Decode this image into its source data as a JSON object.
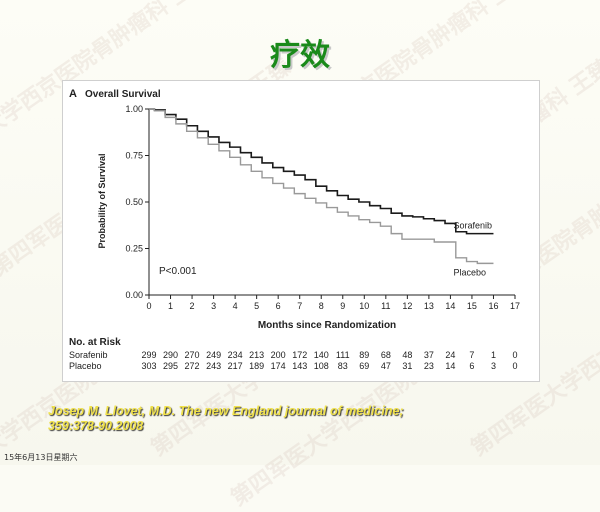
{
  "slide": {
    "title": "疗效",
    "citation_line1": "Josep M. Llovet, M.D.  The  new England journal  of  medicine;",
    "citation_line2": "359:378-90.2008",
    "footer": "15年6月13日星期六",
    "watermark_text": "第四军医大学西京医院骨肿瘤科  王臻"
  },
  "chart_data": {
    "type": "line",
    "panel_label": "A",
    "title": "Overall Survival",
    "xlabel": "Months since Randomization",
    "ylabel": "Probability of Survival",
    "xlim": [
      0,
      17
    ],
    "ylim": [
      0,
      1.0
    ],
    "x_ticks": [
      0,
      1,
      2,
      3,
      4,
      5,
      6,
      7,
      8,
      9,
      10,
      11,
      12,
      13,
      14,
      15,
      16,
      17
    ],
    "y_ticks": [
      {
        "value": 0,
        "label": "0.00"
      },
      {
        "value": 0.25,
        "label": "0.25"
      },
      {
        "value": 0.5,
        "label": "0.50"
      },
      {
        "value": 0.75,
        "label": "0.75"
      },
      {
        "value": 1.0,
        "label": "1.00"
      }
    ],
    "annotation": "P<0.001",
    "series": [
      {
        "name": "Sorafenib",
        "color": "#1a1a1a",
        "x": [
          0,
          0.5,
          1,
          1.5,
          2,
          2.5,
          3,
          3.5,
          4,
          4.5,
          5,
          5.5,
          6,
          6.5,
          7,
          7.5,
          8,
          8.5,
          9,
          9.5,
          10,
          10.5,
          11,
          11.5,
          12,
          12.5,
          13,
          13.5,
          14,
          14.5,
          15,
          15.5,
          16
        ],
        "y": [
          1.0,
          0.995,
          0.97,
          0.945,
          0.91,
          0.88,
          0.85,
          0.82,
          0.795,
          0.765,
          0.74,
          0.71,
          0.685,
          0.665,
          0.645,
          0.62,
          0.585,
          0.56,
          0.535,
          0.515,
          0.5,
          0.48,
          0.465,
          0.44,
          0.425,
          0.42,
          0.41,
          0.4,
          0.385,
          0.34,
          0.33,
          0.33,
          0.33
        ]
      },
      {
        "name": "Placebo",
        "color": "#999999",
        "x": [
          0,
          0.5,
          1,
          1.5,
          2,
          2.5,
          3,
          3.5,
          4,
          4.5,
          5,
          5.5,
          6,
          6.5,
          7,
          7.5,
          8,
          8.5,
          9,
          9.5,
          10,
          10.5,
          11,
          11.5,
          12,
          12.5,
          13,
          13.5,
          14,
          14.5,
          15,
          15.5,
          16
        ],
        "y": [
          1.0,
          0.99,
          0.955,
          0.92,
          0.88,
          0.845,
          0.81,
          0.775,
          0.74,
          0.7,
          0.665,
          0.63,
          0.6,
          0.575,
          0.545,
          0.52,
          0.495,
          0.47,
          0.445,
          0.425,
          0.405,
          0.39,
          0.37,
          0.33,
          0.3,
          0.3,
          0.3,
          0.285,
          0.285,
          0.2,
          0.18,
          0.17,
          0.17
        ]
      }
    ],
    "at_risk": {
      "title": "No. at Risk",
      "rows": [
        {
          "label": "Sorafenib",
          "values": [
            "299",
            "290",
            "270",
            "249",
            "234",
            "213",
            "200",
            "172",
            "140",
            "111",
            "89",
            "68",
            "48",
            "37",
            "24",
            "7",
            "1",
            "0"
          ]
        },
        {
          "label": "Placebo",
          "values": [
            "303",
            "295",
            "272",
            "243",
            "217",
            "189",
            "174",
            "143",
            "108",
            "83",
            "69",
            "47",
            "31",
            "23",
            "14",
            "6",
            "3",
            "0"
          ]
        }
      ]
    }
  }
}
